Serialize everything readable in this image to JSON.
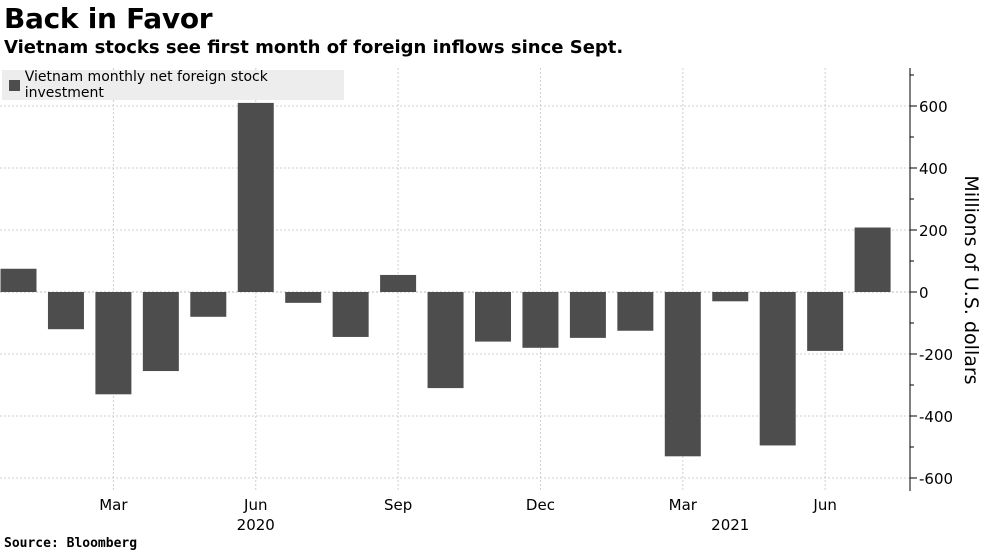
{
  "header": {
    "title": "Back in Favor",
    "subtitle": "Vietnam stocks see first month of foreign inflows since Sept."
  },
  "legend": {
    "label": "Vietnam monthly net foreign stock investment"
  },
  "footer": {
    "source": "Source: Bloomberg"
  },
  "chart_data": {
    "type": "bar",
    "title": "Back in Favor",
    "subtitle": "Vietnam stocks see first month of foreign inflows since Sept.",
    "ylabel": "Millions of U.S. dollars",
    "xlabel": "",
    "ylim": [
      -620,
      720
    ],
    "yticks": [
      600,
      400,
      200,
      0,
      -200,
      -400,
      -600
    ],
    "ytick_labels": [
      "600",
      "400",
      "200",
      "0",
      "-200",
      "-400",
      "-600"
    ],
    "grid": true,
    "legend_position": "top-left",
    "bar_color": "#4d4d4d",
    "series": [
      {
        "name": "Vietnam monthly net foreign stock investment",
        "values": [
          75,
          -120,
          -330,
          -255,
          -80,
          610,
          -35,
          -145,
          55,
          -310,
          -160,
          -180,
          -148,
          -125,
          -530,
          -30,
          -495,
          -190,
          208
        ]
      }
    ],
    "categories": [
      "2020-01",
      "2020-02",
      "2020-03",
      "2020-04",
      "2020-05",
      "2020-06",
      "2020-07",
      "2020-08",
      "2020-09",
      "2020-10",
      "2020-11",
      "2020-12",
      "2021-01",
      "2021-02",
      "2021-03",
      "2021-04",
      "2021-05",
      "2021-06",
      "2021-07"
    ],
    "x_tick_labels": [
      {
        "index": 2,
        "label": "Mar"
      },
      {
        "index": 5,
        "label": "Jun"
      },
      {
        "index": 8,
        "label": "Sep"
      },
      {
        "index": 11,
        "label": "Dec"
      },
      {
        "index": 14,
        "label": "Mar"
      },
      {
        "index": 17,
        "label": "Jun"
      }
    ],
    "year_labels": [
      {
        "index": 5,
        "label": "2020"
      },
      {
        "index": 15,
        "label": "2021"
      }
    ]
  }
}
